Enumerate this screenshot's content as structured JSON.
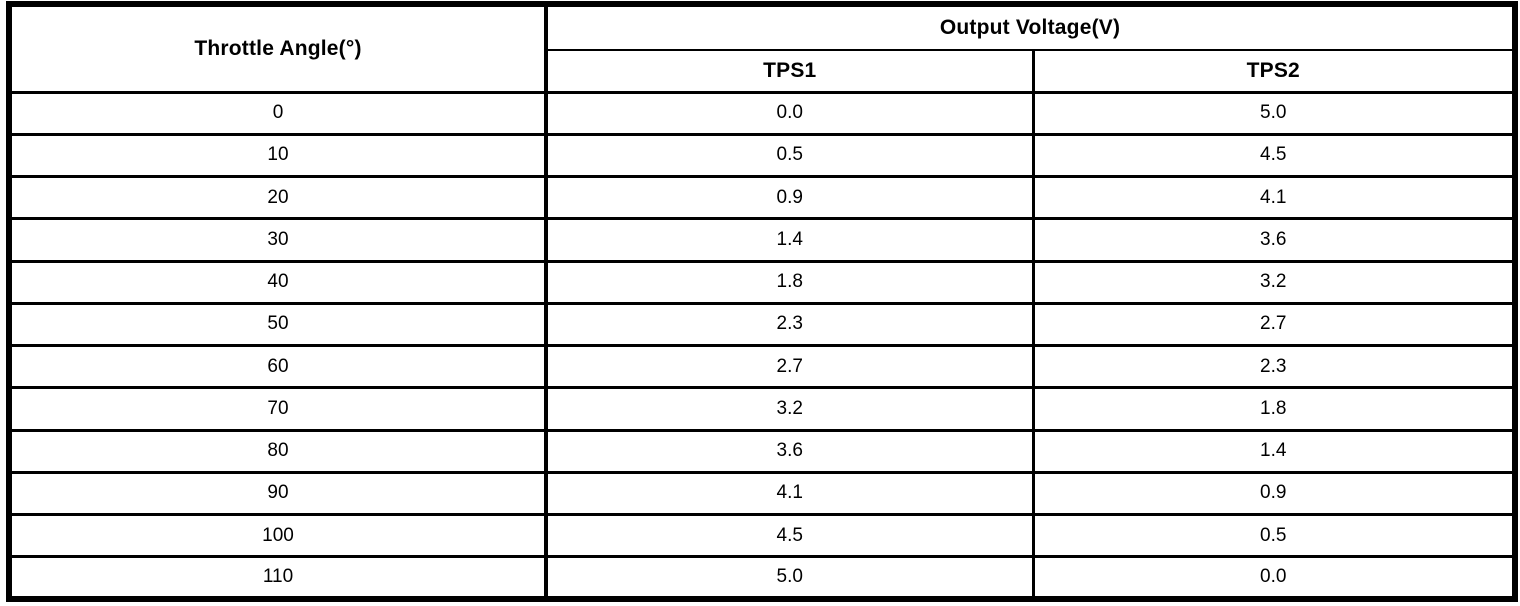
{
  "table": {
    "angle_header": "Throttle Angle(°)",
    "group_header": "Output Voltage(V)",
    "sub_headers": [
      "TPS1",
      "TPS2"
    ],
    "rows": [
      [
        "0",
        "0.0",
        "5.0"
      ],
      [
        "10",
        "0.5",
        "4.5"
      ],
      [
        "20",
        "0.9",
        "4.1"
      ],
      [
        "30",
        "1.4",
        "3.6"
      ],
      [
        "40",
        "1.8",
        "3.2"
      ],
      [
        "50",
        "2.3",
        "2.7"
      ],
      [
        "60",
        "2.7",
        "2.3"
      ],
      [
        "70",
        "3.2",
        "1.8"
      ],
      [
        "80",
        "3.6",
        "1.4"
      ],
      [
        "90",
        "4.1",
        "0.9"
      ],
      [
        "100",
        "4.5",
        "0.5"
      ],
      [
        "110",
        "5.0",
        "0.0"
      ]
    ]
  },
  "colors": {
    "border": "#000000",
    "background": "#ffffff",
    "text": "#000000"
  },
  "chart_data": {
    "type": "table",
    "title": "Output Voltage(V) vs Throttle Angle(°)",
    "columns": [
      "Throttle Angle(°)",
      "TPS1",
      "TPS2"
    ],
    "x_label": "Throttle Angle(°)",
    "y_label": "Output Voltage(V)",
    "x": [
      0,
      10,
      20,
      30,
      40,
      50,
      60,
      70,
      80,
      90,
      100,
      110
    ],
    "series": [
      {
        "name": "TPS1",
        "values": [
          0.0,
          0.5,
          0.9,
          1.4,
          1.8,
          2.3,
          2.7,
          3.2,
          3.6,
          4.1,
          4.5,
          5.0
        ]
      },
      {
        "name": "TPS2",
        "values": [
          5.0,
          4.5,
          4.1,
          3.6,
          3.2,
          2.7,
          2.3,
          1.8,
          1.4,
          0.9,
          0.5,
          0.0
        ]
      }
    ]
  }
}
